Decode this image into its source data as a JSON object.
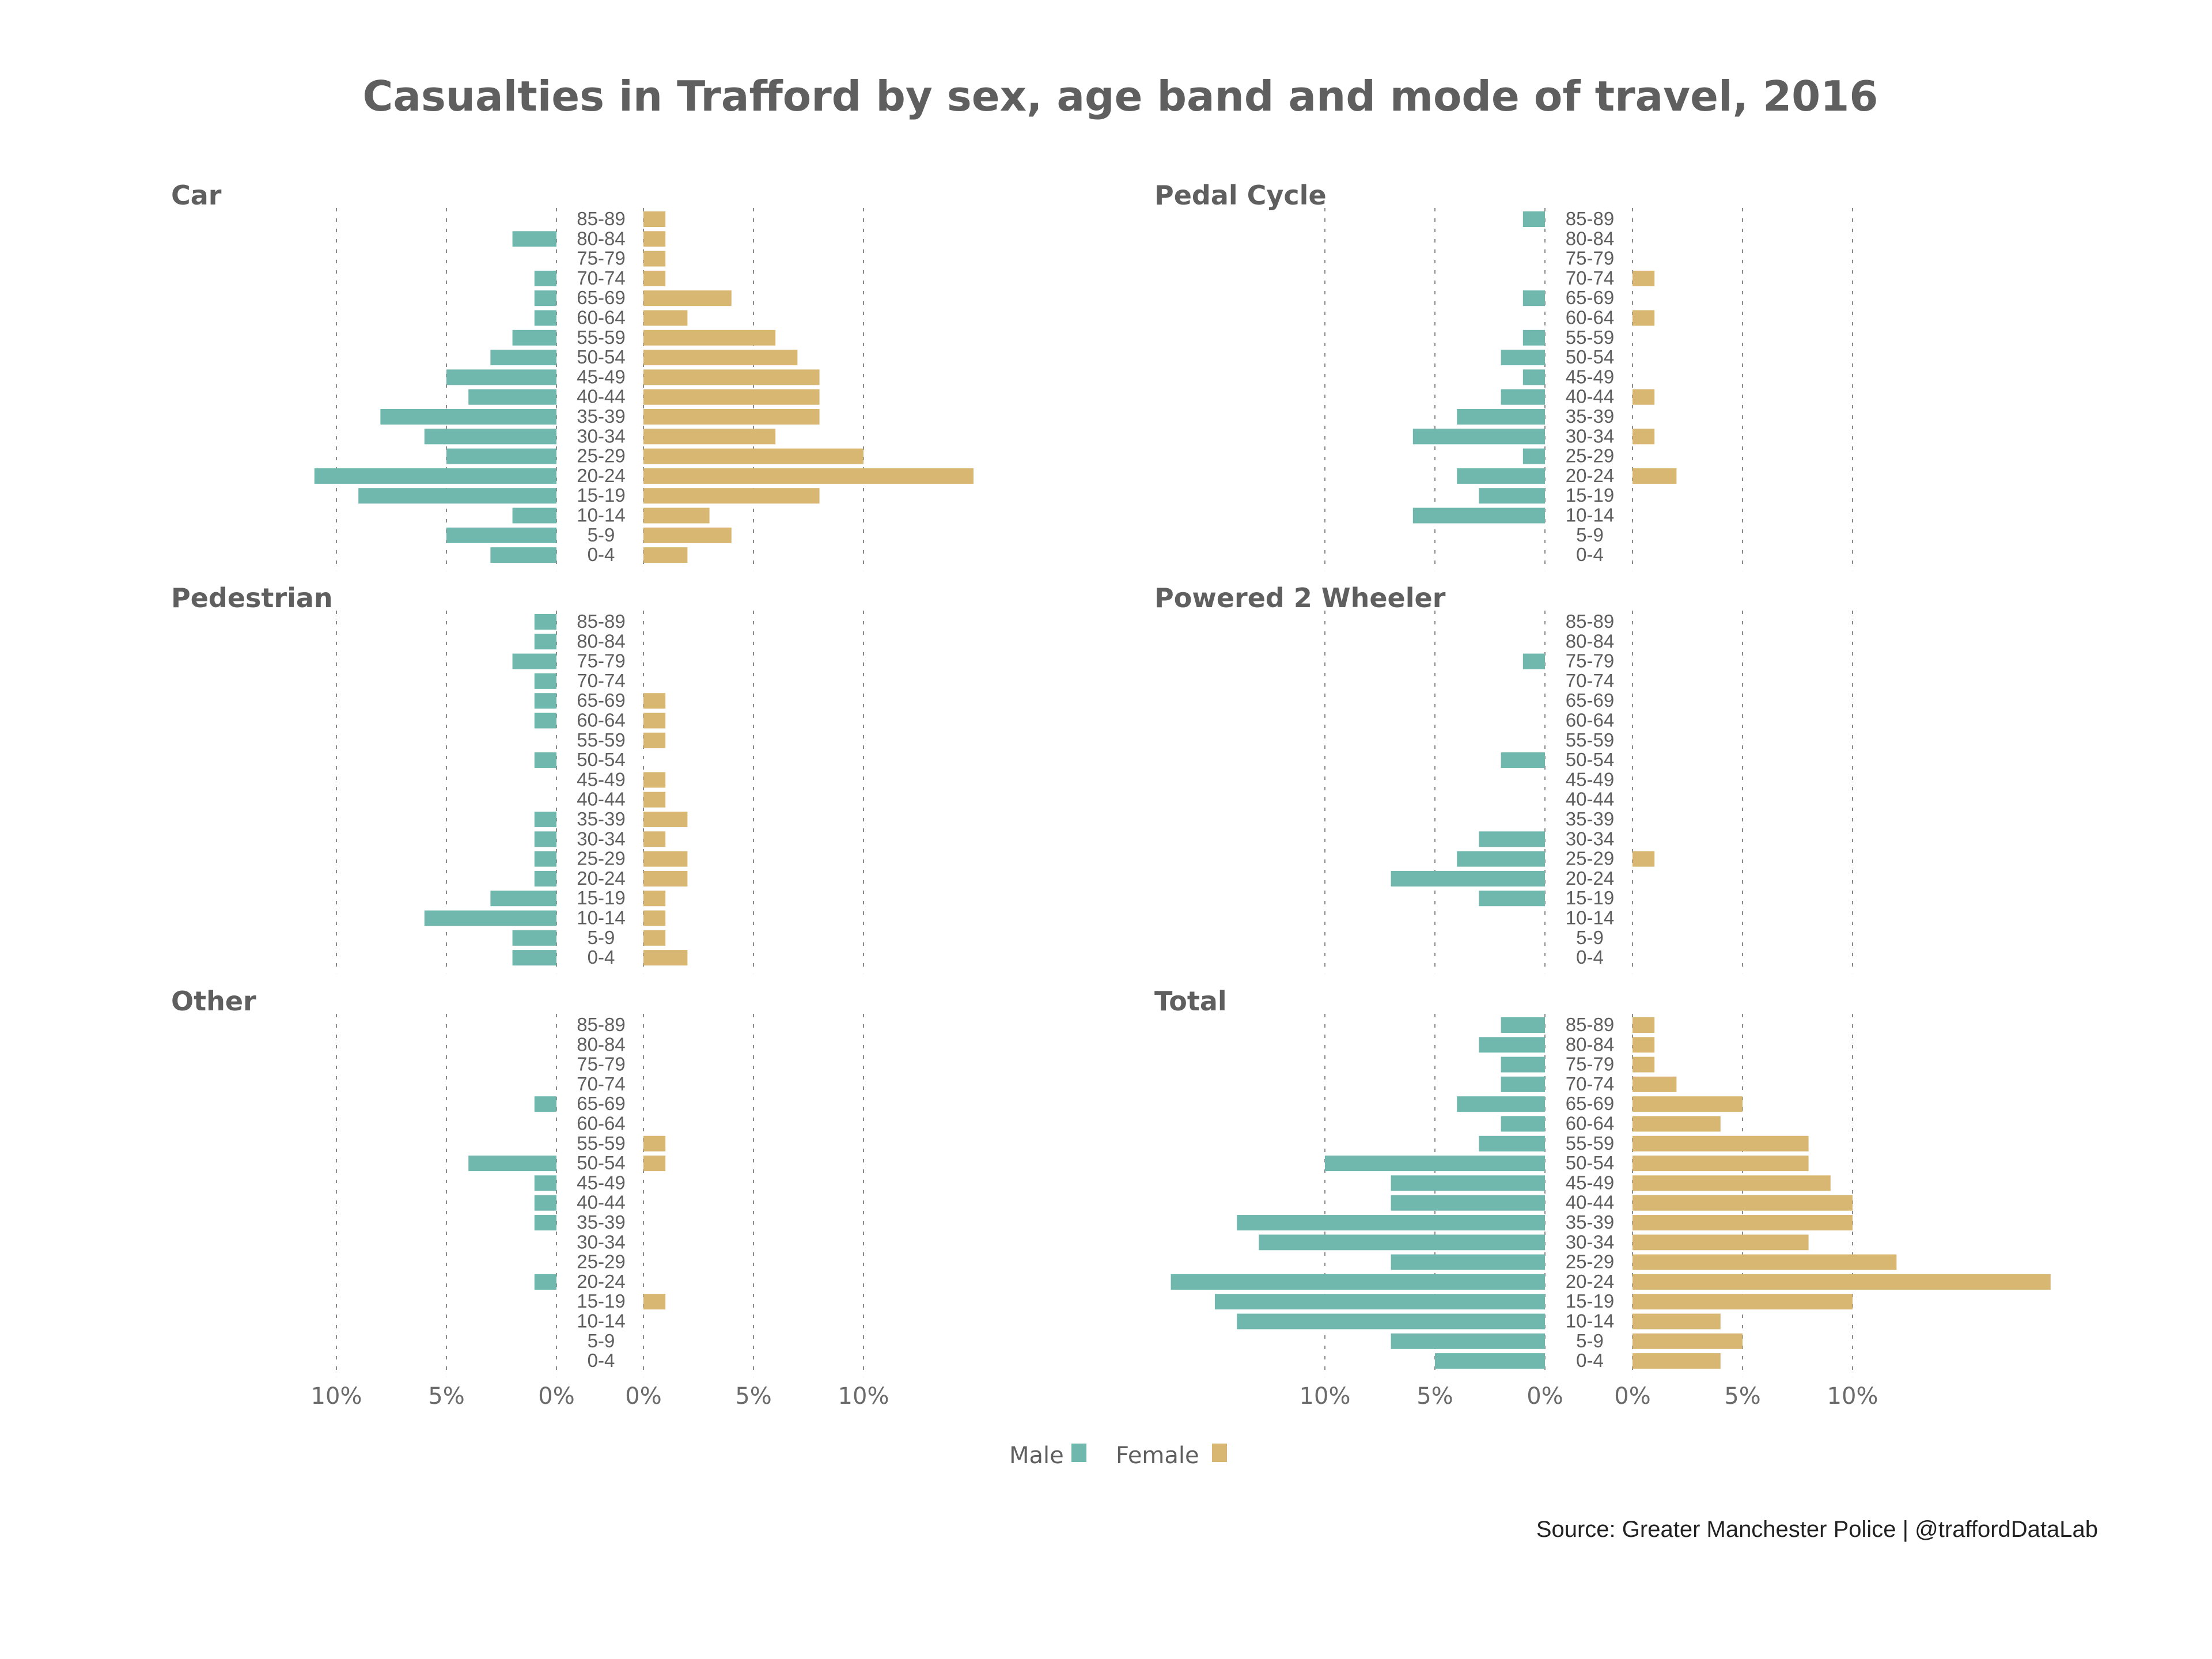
{
  "chart_data": {
    "type": "bar",
    "subtype": "population-pyramid",
    "title": "Casualties in Trafford by sex, age band and mode of travel, 2016",
    "source": "Source: Greater Manchester Police  |  @traffordDataLab",
    "legend": {
      "placement": "bottom-center",
      "entries": [
        {
          "name": "Male",
          "color": "#70b8ae"
        },
        {
          "name": "Female",
          "color": "#d8b773"
        }
      ]
    },
    "colors": {
      "male": "#70b8ae",
      "female": "#d8b773",
      "text": "#5f5f5f",
      "grid": "#8a8a8a"
    },
    "age_bands": [
      "85-89",
      "80-84",
      "75-79",
      "70-74",
      "65-69",
      "60-64",
      "55-59",
      "50-54",
      "45-49",
      "40-44",
      "35-39",
      "30-34",
      "25-29",
      "20-24",
      "15-19",
      "10-14",
      "5-9",
      "0-4"
    ],
    "x_ticks": {
      "male": [
        "10%",
        "5%",
        "0%"
      ],
      "female": [
        "0%",
        "5%",
        "10%"
      ]
    },
    "x_tick_values": [
      10,
      5,
      0
    ],
    "unit": "%",
    "panels": [
      {
        "name": "Car",
        "male": [
          0,
          2,
          0,
          1,
          1,
          1,
          2,
          3,
          5,
          4,
          8,
          6,
          5,
          11,
          9,
          2,
          5,
          3
        ],
        "female": [
          1,
          1,
          1,
          1,
          4,
          2,
          6,
          7,
          8,
          8,
          8,
          6,
          10,
          15,
          8,
          3,
          4,
          2
        ]
      },
      {
        "name": "Pedal Cycle",
        "male": [
          1,
          0,
          0,
          0,
          1,
          0,
          1,
          2,
          1,
          2,
          4,
          6,
          1,
          4,
          3,
          6,
          0,
          0
        ],
        "female": [
          0,
          0,
          0,
          1,
          0,
          1,
          0,
          0,
          0,
          1,
          0,
          1,
          0,
          2,
          0,
          0,
          0,
          0
        ]
      },
      {
        "name": "Pedestrian",
        "male": [
          1,
          1,
          2,
          1,
          1,
          1,
          0,
          1,
          0,
          0,
          1,
          1,
          1,
          1,
          3,
          6,
          2,
          2
        ],
        "female": [
          0,
          0,
          0,
          0,
          1,
          1,
          1,
          0,
          1,
          1,
          2,
          1,
          2,
          2,
          1,
          1,
          1,
          2
        ]
      },
      {
        "name": "Powered 2 Wheeler",
        "male": [
          0,
          0,
          1,
          0,
          0,
          0,
          0,
          2,
          0,
          0,
          0,
          3,
          4,
          7,
          3,
          0,
          0,
          0
        ],
        "female": [
          0,
          0,
          0,
          0,
          0,
          0,
          0,
          0,
          0,
          0,
          0,
          0,
          1,
          0,
          0,
          0,
          0,
          0
        ]
      },
      {
        "name": "Other",
        "male": [
          0,
          0,
          0,
          0,
          1,
          0,
          0,
          4,
          1,
          1,
          1,
          0,
          0,
          1,
          0,
          0,
          0,
          0
        ],
        "female": [
          0,
          0,
          0,
          0,
          0,
          0,
          1,
          1,
          0,
          0,
          0,
          0,
          0,
          0,
          1,
          0,
          0,
          0
        ]
      },
      {
        "name": "Total",
        "male": [
          2,
          3,
          2,
          2,
          4,
          2,
          3,
          10,
          7,
          7,
          14,
          13,
          7,
          17,
          15,
          14,
          7,
          5
        ],
        "female": [
          1,
          1,
          1,
          2,
          5,
          4,
          8,
          8,
          9,
          10,
          10,
          8,
          12,
          19,
          10,
          4,
          5,
          4
        ]
      }
    ]
  }
}
